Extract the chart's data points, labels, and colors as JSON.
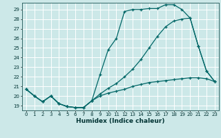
{
  "xlabel": "Humidex (Indice chaleur)",
  "bg_color": "#cce8e8",
  "grid_color": "#ffffff",
  "line_color": "#006666",
  "xlim": [
    -0.5,
    23.5
  ],
  "ylim": [
    18.5,
    29.7
  ],
  "xticks": [
    0,
    1,
    2,
    3,
    4,
    5,
    6,
    7,
    8,
    9,
    10,
    11,
    12,
    13,
    14,
    15,
    16,
    17,
    18,
    19,
    20,
    21,
    22,
    23
  ],
  "yticks": [
    19,
    20,
    21,
    22,
    23,
    24,
    25,
    26,
    27,
    28,
    29
  ],
  "line1_x": [
    0,
    1,
    2,
    3,
    4,
    5,
    6,
    7,
    8,
    9,
    10,
    11,
    12,
    13,
    14,
    15,
    16,
    17,
    18,
    19,
    20,
    21,
    22,
    23
  ],
  "line1_y": [
    20.7,
    20.0,
    19.4,
    20.0,
    19.2,
    18.9,
    18.8,
    18.8,
    19.5,
    22.2,
    24.8,
    26.0,
    28.8,
    29.0,
    29.0,
    29.1,
    29.1,
    29.5,
    29.5,
    29.0,
    28.1,
    25.2,
    22.6,
    21.5
  ],
  "line2_x": [
    0,
    1,
    2,
    3,
    4,
    5,
    6,
    7,
    8,
    9,
    10,
    11,
    12,
    13,
    14,
    15,
    16,
    17,
    18,
    19,
    20,
    21,
    22,
    23
  ],
  "line2_y": [
    20.7,
    20.0,
    19.4,
    20.0,
    19.2,
    18.9,
    18.8,
    18.8,
    19.5,
    20.2,
    20.8,
    21.3,
    22.0,
    22.8,
    23.8,
    25.0,
    26.2,
    27.2,
    27.8,
    28.0,
    28.1,
    25.2,
    22.6,
    21.5
  ],
  "line3_x": [
    0,
    1,
    2,
    3,
    4,
    5,
    6,
    7,
    8,
    9,
    10,
    11,
    12,
    13,
    14,
    15,
    16,
    17,
    18,
    19,
    20,
    21,
    22,
    23
  ],
  "line3_y": [
    20.7,
    20.0,
    19.4,
    20.0,
    19.2,
    18.9,
    18.8,
    18.8,
    19.5,
    20.0,
    20.3,
    20.5,
    20.7,
    21.0,
    21.2,
    21.4,
    21.5,
    21.6,
    21.7,
    21.8,
    21.9,
    21.9,
    21.8,
    21.5
  ]
}
